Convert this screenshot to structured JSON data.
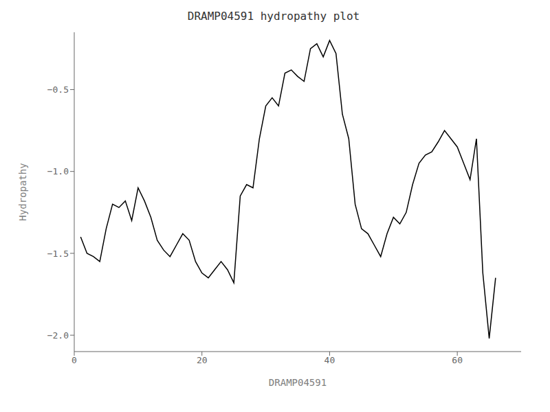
{
  "chart_data": {
    "type": "line",
    "title": "DRAMP04591 hydropathy plot",
    "xlabel": "DRAMP04591",
    "ylabel": "Hydropathy",
    "xlim": [
      0,
      70
    ],
    "ylim": [
      -2.1,
      -0.15
    ],
    "xticks": [
      0,
      20,
      40,
      60
    ],
    "yticks": [
      {
        "value": -2.0,
        "label": "−2.0"
      },
      {
        "value": -1.5,
        "label": "−1.5"
      },
      {
        "value": -1.0,
        "label": "−1.0"
      },
      {
        "value": -0.5,
        "label": "−0.5"
      }
    ],
    "color": "#000000",
    "grid": false,
    "x": [
      1,
      2,
      3,
      4,
      5,
      6,
      7,
      8,
      9,
      10,
      11,
      12,
      13,
      14,
      15,
      16,
      17,
      18,
      19,
      20,
      21,
      22,
      23,
      24,
      25,
      26,
      27,
      28,
      29,
      30,
      31,
      32,
      33,
      34,
      35,
      36,
      37,
      38,
      39,
      40,
      41,
      42,
      43,
      44,
      45,
      46,
      47,
      48,
      49,
      50,
      51,
      52,
      53,
      54,
      55,
      56,
      57,
      58,
      59,
      60,
      61,
      62,
      63,
      64,
      65,
      66
    ],
    "values": [
      -1.4,
      -1.5,
      -1.52,
      -1.55,
      -1.35,
      -1.2,
      -1.22,
      -1.18,
      -1.3,
      -1.1,
      -1.18,
      -1.28,
      -1.42,
      -1.48,
      -1.52,
      -1.45,
      -1.38,
      -1.42,
      -1.55,
      -1.62,
      -1.65,
      -1.6,
      -1.55,
      -1.6,
      -1.68,
      -1.15,
      -1.08,
      -1.1,
      -0.8,
      -0.6,
      -0.55,
      -0.6,
      -0.4,
      -0.38,
      -0.42,
      -0.45,
      -0.25,
      -0.22,
      -0.3,
      -0.2,
      -0.28,
      -0.65,
      -0.8,
      -1.2,
      -1.35,
      -1.38,
      -1.45,
      -1.52,
      -1.38,
      -1.28,
      -1.32,
      -1.25,
      -1.08,
      -0.95,
      -0.9,
      -0.88,
      -0.82,
      -0.75,
      -0.8,
      -0.85,
      -0.95,
      -1.05,
      -0.8,
      -1.62,
      -2.02,
      -1.65
    ]
  }
}
